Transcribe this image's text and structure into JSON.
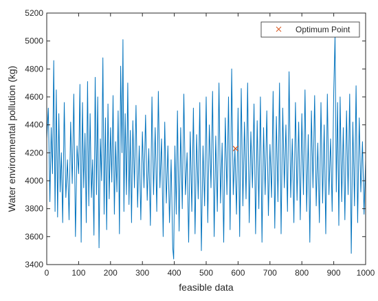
{
  "chart_data": {
    "type": "line",
    "xlabel": "feasible data",
    "ylabel": "Water environmental pollution (kg)",
    "xlim": [
      0,
      1000
    ],
    "ylim": [
      3400,
      5200
    ],
    "xticks": [
      "0",
      "100",
      "200",
      "300",
      "400",
      "500",
      "600",
      "700",
      "800",
      "900",
      "1000"
    ],
    "yticks": [
      "3400",
      "3600",
      "3800",
      "4000",
      "4200",
      "4400",
      "4600",
      "4800",
      "5000",
      "5200"
    ],
    "grid": false,
    "legend_position": "top-right",
    "colors": {
      "series": "#0072BD",
      "marker": "#D95319",
      "axes": "#262626"
    },
    "series": [
      {
        "name": "",
        "points": [
          [
            0,
            4300
          ],
          [
            5,
            4520
          ],
          [
            10,
            3850
          ],
          [
            14,
            4380
          ],
          [
            18,
            4050
          ],
          [
            22,
            4860
          ],
          [
            26,
            3780
          ],
          [
            30,
            4650
          ],
          [
            34,
            3740
          ],
          [
            38,
            4480
          ],
          [
            42,
            3920
          ],
          [
            46,
            4200
          ],
          [
            50,
            3700
          ],
          [
            55,
            4560
          ],
          [
            60,
            3880
          ],
          [
            65,
            4150
          ],
          [
            70,
            3720
          ],
          [
            75,
            4420
          ],
          [
            80,
            3980
          ],
          [
            85,
            4620
          ],
          [
            90,
            3600
          ],
          [
            95,
            4250
          ],
          [
            100,
            4050
          ],
          [
            104,
            4690
          ],
          [
            108,
            3560
          ],
          [
            112,
            4560
          ],
          [
            116,
            3950
          ],
          [
            120,
            4340
          ],
          [
            124,
            3700
          ],
          [
            128,
            4710
          ],
          [
            132,
            3820
          ],
          [
            136,
            4480
          ],
          [
            140,
            3880
          ],
          [
            144,
            4150
          ],
          [
            148,
            3610
          ],
          [
            152,
            4740
          ],
          [
            156,
            3900
          ],
          [
            160,
            4600
          ],
          [
            164,
            3520
          ],
          [
            168,
            4300
          ],
          [
            172,
            4000
          ],
          [
            176,
            4880
          ],
          [
            180,
            3760
          ],
          [
            184,
            4450
          ],
          [
            188,
            3650
          ],
          [
            192,
            4550
          ],
          [
            196,
            3870
          ],
          [
            200,
            4380
          ],
          [
            204,
            3990
          ],
          [
            208,
            4610
          ],
          [
            212,
            3760
          ],
          [
            216,
            4280
          ],
          [
            220,
            3920
          ],
          [
            224,
            4500
          ],
          [
            228,
            3620
          ],
          [
            232,
            4820
          ],
          [
            236,
            4200
          ],
          [
            239,
            5010
          ],
          [
            242,
            3780
          ],
          [
            246,
            4480
          ],
          [
            250,
            3900
          ],
          [
            254,
            4700
          ],
          [
            258,
            3830
          ],
          [
            262,
            4360
          ],
          [
            266,
            3700
          ],
          [
            270,
            4430
          ],
          [
            275,
            3950
          ],
          [
            280,
            4540
          ],
          [
            285,
            3810
          ],
          [
            290,
            4250
          ],
          [
            295,
            3720
          ],
          [
            300,
            4350
          ],
          [
            305,
            3950
          ],
          [
            310,
            4470
          ],
          [
            315,
            3860
          ],
          [
            320,
            4230
          ],
          [
            325,
            3680
          ],
          [
            330,
            4600
          ],
          [
            335,
            3900
          ],
          [
            340,
            4380
          ],
          [
            345,
            3780
          ],
          [
            350,
            4640
          ],
          [
            355,
            3950
          ],
          [
            360,
            4300
          ],
          [
            365,
            3600
          ],
          [
            370,
            4420
          ],
          [
            375,
            3840
          ],
          [
            380,
            4250
          ],
          [
            385,
            3700
          ],
          [
            390,
            4150
          ],
          [
            395,
            3520
          ],
          [
            398,
            3440
          ],
          [
            402,
            4250
          ],
          [
            406,
            3760
          ],
          [
            410,
            4500
          ],
          [
            415,
            3640
          ],
          [
            420,
            4380
          ],
          [
            425,
            3800
          ],
          [
            430,
            4620
          ],
          [
            435,
            3900
          ],
          [
            440,
            4200
          ],
          [
            445,
            3560
          ],
          [
            450,
            4350
          ],
          [
            455,
            3780
          ],
          [
            460,
            4520
          ],
          [
            465,
            3620
          ],
          [
            470,
            4330
          ],
          [
            475,
            3870
          ],
          [
            480,
            4560
          ],
          [
            485,
            3500
          ],
          [
            490,
            4250
          ],
          [
            495,
            3820
          ],
          [
            500,
            4600
          ],
          [
            505,
            3700
          ],
          [
            510,
            4400
          ],
          [
            515,
            3950
          ],
          [
            520,
            4640
          ],
          [
            525,
            3600
          ],
          [
            530,
            4320
          ],
          [
            535,
            3780
          ],
          [
            540,
            4700
          ],
          [
            545,
            3840
          ],
          [
            550,
            4270
          ],
          [
            555,
            3560
          ],
          [
            560,
            4450
          ],
          [
            565,
            3900
          ],
          [
            570,
            4600
          ],
          [
            575,
            3650
          ],
          [
            580,
            4800
          ],
          [
            585,
            3900
          ],
          [
            590,
            4230
          ],
          [
            595,
            3760
          ],
          [
            600,
            4520
          ],
          [
            605,
            3600
          ],
          [
            610,
            4660
          ],
          [
            615,
            3820
          ],
          [
            620,
            4420
          ],
          [
            625,
            3870
          ],
          [
            630,
            4700
          ],
          [
            635,
            3700
          ],
          [
            640,
            4350
          ],
          [
            645,
            3950
          ],
          [
            650,
            4550
          ],
          [
            655,
            3620
          ],
          [
            660,
            4430
          ],
          [
            665,
            3800
          ],
          [
            670,
            4600
          ],
          [
            675,
            3560
          ],
          [
            680,
            4380
          ],
          [
            685,
            3900
          ],
          [
            690,
            4500
          ],
          [
            695,
            3750
          ],
          [
            700,
            4260
          ],
          [
            705,
            3880
          ],
          [
            710,
            4640
          ],
          [
            715,
            3660
          ],
          [
            720,
            4460
          ],
          [
            725,
            3850
          ],
          [
            730,
            4700
          ],
          [
            735,
            3620
          ],
          [
            740,
            4520
          ],
          [
            745,
            3950
          ],
          [
            750,
            4400
          ],
          [
            755,
            3780
          ],
          [
            760,
            4780
          ],
          [
            765,
            3880
          ],
          [
            770,
            4300
          ],
          [
            775,
            3700
          ],
          [
            780,
            4560
          ],
          [
            785,
            3860
          ],
          [
            790,
            4420
          ],
          [
            795,
            3720
          ],
          [
            800,
            4480
          ],
          [
            805,
            3900
          ],
          [
            810,
            4650
          ],
          [
            815,
            3780
          ],
          [
            820,
            4330
          ],
          [
            825,
            3560
          ],
          [
            830,
            4500
          ],
          [
            835,
            3950
          ],
          [
            840,
            4610
          ],
          [
            845,
            3820
          ],
          [
            850,
            4270
          ],
          [
            855,
            3700
          ],
          [
            860,
            4560
          ],
          [
            865,
            3840
          ],
          [
            870,
            4400
          ],
          [
            875,
            3620
          ],
          [
            880,
            4620
          ],
          [
            885,
            3900
          ],
          [
            890,
            4300
          ],
          [
            895,
            3780
          ],
          [
            900,
            4640
          ],
          [
            904,
            5040
          ],
          [
            908,
            3920
          ],
          [
            912,
            4560
          ],
          [
            916,
            3680
          ],
          [
            920,
            4600
          ],
          [
            925,
            3850
          ],
          [
            930,
            4380
          ],
          [
            935,
            3720
          ],
          [
            940,
            4500
          ],
          [
            945,
            3900
          ],
          [
            950,
            4620
          ],
          [
            955,
            3480
          ],
          [
            960,
            4420
          ],
          [
            965,
            3820
          ],
          [
            970,
            4680
          ],
          [
            975,
            3700
          ],
          [
            980,
            4450
          ],
          [
            985,
            3920
          ],
          [
            990,
            4280
          ],
          [
            995,
            3760
          ],
          [
            1000,
            4150
          ]
        ]
      }
    ],
    "optimum": {
      "label": "Optimum Point",
      "x": 592,
      "y": 4230
    }
  }
}
